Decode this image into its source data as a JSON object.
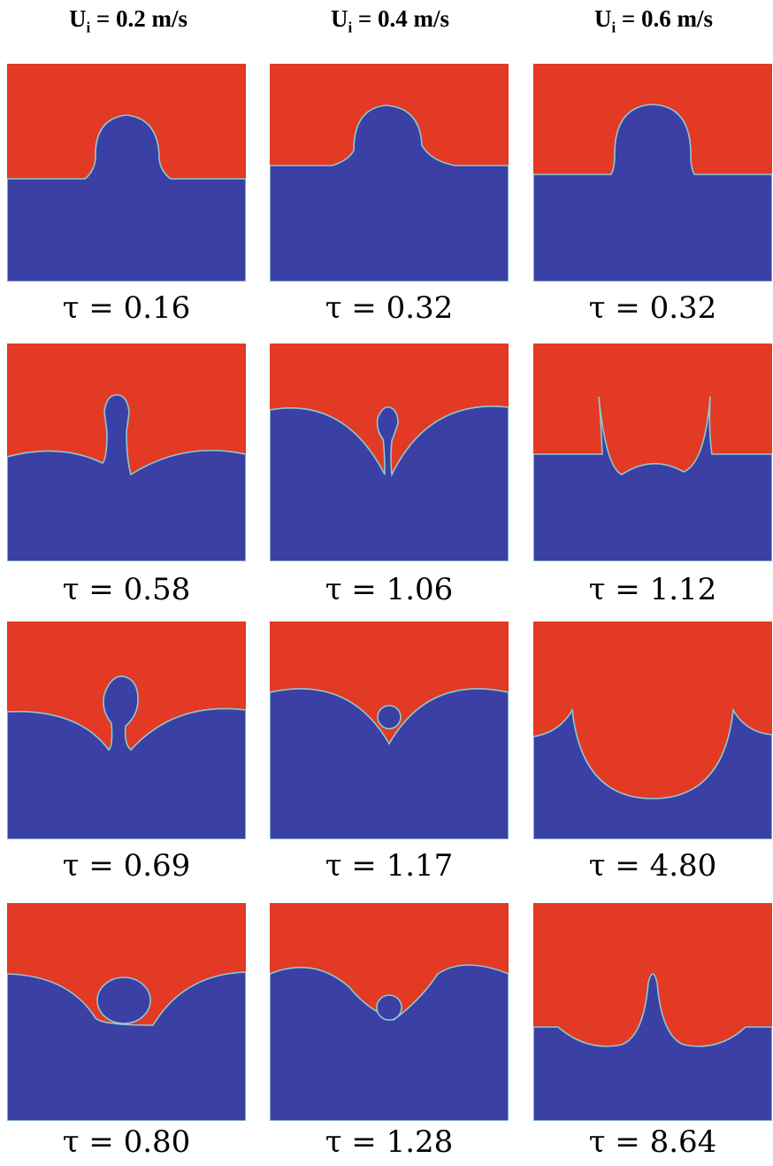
{
  "columns": [
    {
      "header": {
        "symbol": "U",
        "subscript": "i",
        "value": "= 0.2 m/s"
      },
      "panels": [
        "τ = 0.16",
        "τ = 0.58",
        "τ = 0.69",
        "τ = 0.80"
      ]
    },
    {
      "header": {
        "symbol": "U",
        "subscript": "i",
        "value": "= 0.4 m/s"
      },
      "panels": [
        "τ = 0.32",
        "τ = 1.06",
        "τ = 1.17",
        "τ = 1.28"
      ]
    },
    {
      "header": {
        "symbol": "U",
        "subscript": "i",
        "value": "= 0.6 m/s"
      },
      "panels": [
        "τ = 0.32",
        "τ = 1.12",
        "τ = 4.80",
        "τ = 8.64"
      ]
    }
  ]
}
